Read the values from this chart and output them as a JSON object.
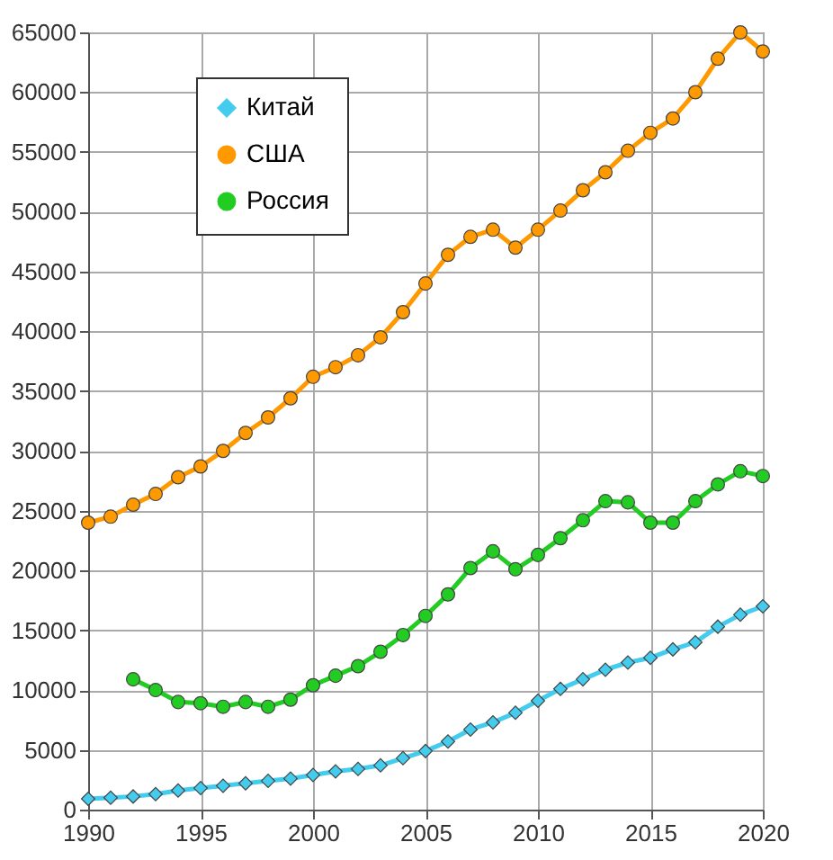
{
  "chart_data": {
    "type": "line",
    "xlim": [
      1990,
      2020
    ],
    "xticks": [
      1990,
      1995,
      2000,
      2005,
      2010,
      2015,
      2020
    ],
    "ylim": [
      0,
      65000
    ],
    "yticks": [
      0,
      5000,
      10000,
      15000,
      20000,
      25000,
      30000,
      35000,
      40000,
      45000,
      50000,
      55000,
      60000,
      65000
    ],
    "grid": true,
    "legend": "top left",
    "series": [
      {
        "name": "Китай",
        "color": "#44ccee",
        "marker": "diamond",
        "x": [
          1990,
          1991,
          1992,
          1993,
          1994,
          1995,
          1996,
          1997,
          1998,
          1999,
          2000,
          2001,
          2002,
          2003,
          2004,
          2005,
          2006,
          2007,
          2008,
          2009,
          2010,
          2011,
          2012,
          2013,
          2014,
          2015,
          2016,
          2017,
          2018,
          2019,
          2020
        ],
        "values": [
          900,
          1000,
          1100,
          1300,
          1600,
          1800,
          2000,
          2200,
          2400,
          2600,
          2900,
          3200,
          3400,
          3700,
          4300,
          4900,
          5700,
          6700,
          7300,
          8100,
          9100,
          10100,
          10900,
          11700,
          12300,
          12700,
          13400,
          14000,
          15300,
          16300,
          17000
        ]
      },
      {
        "name": "США",
        "color": "#ff9900",
        "marker": "circle",
        "x": [
          1990,
          1991,
          1992,
          1993,
          1994,
          1995,
          1996,
          1997,
          1998,
          1999,
          2000,
          2001,
          2002,
          2003,
          2004,
          2005,
          2006,
          2007,
          2008,
          2009,
          2010,
          2011,
          2012,
          2013,
          2014,
          2015,
          2016,
          2017,
          2018,
          2019,
          2020
        ],
        "values": [
          24000,
          24500,
          25500,
          26400,
          27800,
          28700,
          30000,
          31500,
          32800,
          34400,
          36200,
          37000,
          38000,
          39500,
          41600,
          44000,
          46400,
          47900,
          48500,
          47000,
          48500,
          50100,
          51800,
          53300,
          55100,
          56600,
          57800,
          60000,
          62800,
          65000,
          63400
        ]
      },
      {
        "name": "Россия",
        "color": "#22cc22",
        "marker": "circle",
        "x": [
          1992,
          1993,
          1994,
          1995,
          1996,
          1997,
          1998,
          1999,
          2000,
          2001,
          2002,
          2003,
          2004,
          2005,
          2006,
          2007,
          2008,
          2009,
          2010,
          2011,
          2012,
          2013,
          2014,
          2015,
          2016,
          2017,
          2018,
          2019,
          2020
        ],
        "values": [
          10900,
          10000,
          9000,
          8900,
          8600,
          9000,
          8600,
          9200,
          10400,
          11200,
          12000,
          13200,
          14600,
          16200,
          18000,
          20200,
          21600,
          20100,
          21300,
          22700,
          24200,
          25800,
          25700,
          24000,
          24000,
          25800,
          27200,
          28300,
          27900
        ]
      }
    ]
  }
}
